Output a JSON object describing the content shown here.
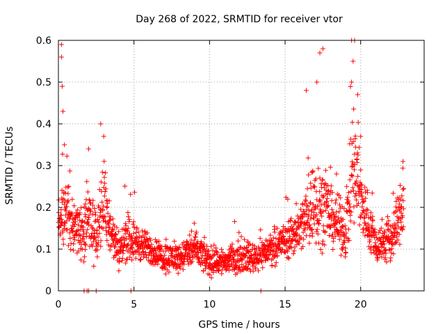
{
  "chart_data": {
    "type": "scatter",
    "title": "Day 268 of 2022, SRMTID for receiver vtor",
    "xlabel": "GPS time / hours",
    "ylabel": "SRMTID / TECUs",
    "xlim": [
      0,
      24.2
    ],
    "ylim": [
      0,
      0.6
    ],
    "grid": true,
    "marker": "plus",
    "color": "#ff0000",
    "x_ticks": [
      {
        "value": 0,
        "label": "0"
      },
      {
        "value": 5,
        "label": "5"
      },
      {
        "value": 10,
        "label": "10"
      },
      {
        "value": 15,
        "label": "15"
      },
      {
        "value": 20,
        "label": "20"
      }
    ],
    "y_ticks": [
      {
        "value": 0,
        "label": "0"
      },
      {
        "value": 0.1,
        "label": "0.1"
      },
      {
        "value": 0.2,
        "label": "0.2"
      },
      {
        "value": 0.3,
        "label": "0.3"
      },
      {
        "value": 0.4,
        "label": "0.4"
      },
      {
        "value": 0.5,
        "label": "0.5"
      },
      {
        "value": 0.6,
        "label": "0.6"
      }
    ],
    "profile": {
      "description": "approximate trend of SRMTID values read from scatter (hour, typical value, spread)",
      "points": [
        [
          0.0,
          0.15,
          0.05
        ],
        [
          0.5,
          0.19,
          0.07
        ],
        [
          1.0,
          0.17,
          0.06
        ],
        [
          1.5,
          0.13,
          0.05
        ],
        [
          2.0,
          0.17,
          0.07
        ],
        [
          2.5,
          0.13,
          0.06
        ],
        [
          3.0,
          0.22,
          0.1
        ],
        [
          3.5,
          0.14,
          0.05
        ],
        [
          4.0,
          0.09,
          0.04
        ],
        [
          4.5,
          0.13,
          0.05
        ],
        [
          5.0,
          0.12,
          0.04
        ],
        [
          6.0,
          0.1,
          0.03
        ],
        [
          7.0,
          0.08,
          0.03
        ],
        [
          8.0,
          0.08,
          0.03
        ],
        [
          9.0,
          0.1,
          0.04
        ],
        [
          10.0,
          0.07,
          0.03
        ],
        [
          11.0,
          0.07,
          0.03
        ],
        [
          12.0,
          0.08,
          0.03
        ],
        [
          13.0,
          0.08,
          0.03
        ],
        [
          14.0,
          0.1,
          0.03
        ],
        [
          15.0,
          0.12,
          0.04
        ],
        [
          16.0,
          0.15,
          0.05
        ],
        [
          17.0,
          0.22,
          0.1
        ],
        [
          18.0,
          0.18,
          0.06
        ],
        [
          19.0,
          0.14,
          0.05
        ],
        [
          19.5,
          0.3,
          0.15
        ],
        [
          20.0,
          0.22,
          0.08
        ],
        [
          21.0,
          0.11,
          0.04
        ],
        [
          22.0,
          0.12,
          0.05
        ],
        [
          22.8,
          0.2,
          0.07
        ]
      ]
    },
    "peaks": [
      {
        "x": 0.2,
        "y": 0.59
      },
      {
        "x": 0.2,
        "y": 0.56
      },
      {
        "x": 0.25,
        "y": 0.49
      },
      {
        "x": 0.3,
        "y": 0.43
      },
      {
        "x": 0.4,
        "y": 0.35
      },
      {
        "x": 2.8,
        "y": 0.4
      },
      {
        "x": 3.0,
        "y": 0.37
      },
      {
        "x": 2.0,
        "y": 0.34
      },
      {
        "x": 17.5,
        "y": 0.58
      },
      {
        "x": 17.3,
        "y": 0.57
      },
      {
        "x": 17.1,
        "y": 0.5
      },
      {
        "x": 16.4,
        "y": 0.48
      },
      {
        "x": 19.4,
        "y": 0.6
      },
      {
        "x": 19.6,
        "y": 0.6
      },
      {
        "x": 19.5,
        "y": 0.55
      },
      {
        "x": 19.4,
        "y": 0.5
      },
      {
        "x": 19.8,
        "y": 0.47
      },
      {
        "x": 20.0,
        "y": 0.37
      },
      {
        "x": 22.8,
        "y": 0.31
      },
      {
        "x": 18.4,
        "y": 0.28
      }
    ],
    "zero_values_x": [
      1.7,
      1.9,
      2.0,
      2.5,
      4.8,
      13.4
    ]
  }
}
